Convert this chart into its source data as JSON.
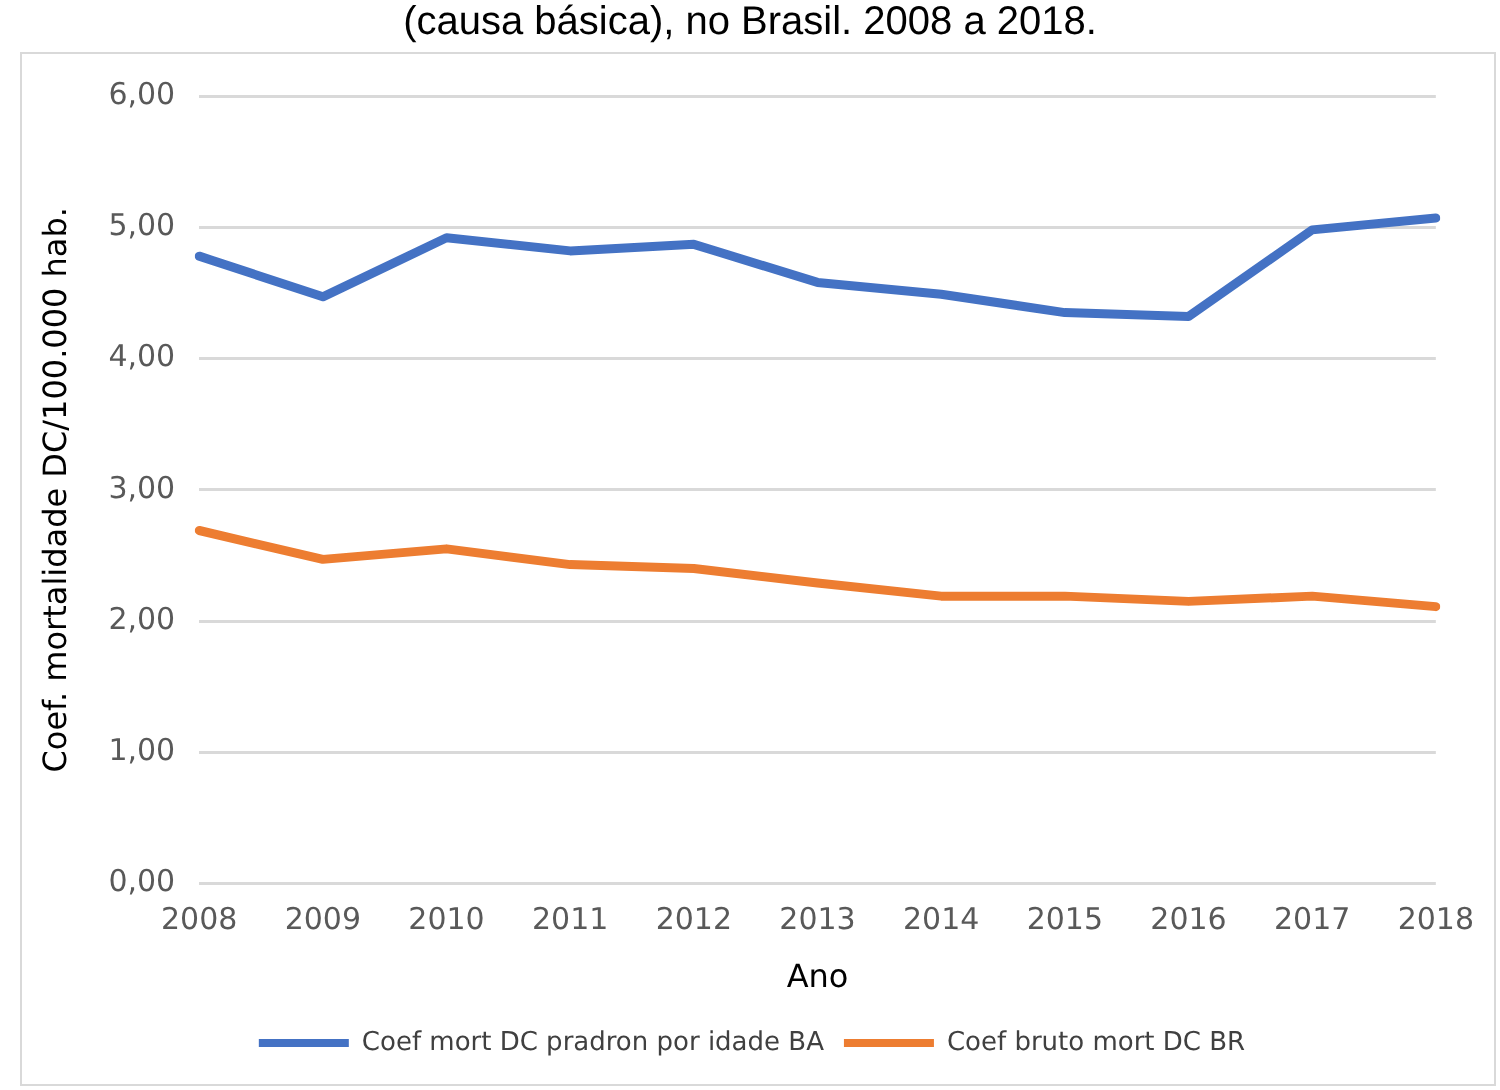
{
  "chart_data": {
    "type": "line",
    "title": "(causa básica), no Brasil. 2008 a 2018.",
    "xlabel": "Ano",
    "ylabel": "Coef. mortalidade DC/100.000 hab.",
    "categories": [
      "2008",
      "2009",
      "2010",
      "2011",
      "2012",
      "2013",
      "2014",
      "2015",
      "2016",
      "2017",
      "2018"
    ],
    "series": [
      {
        "name": "Coef mort DC pradron por idade BA",
        "color": "#4472c4",
        "values": [
          4.78,
          4.47,
          4.92,
          4.82,
          4.87,
          4.58,
          4.49,
          4.35,
          4.32,
          4.98,
          5.07
        ]
      },
      {
        "name": "Coef bruto mort DC BR",
        "color": "#ed7d31",
        "values": [
          2.69,
          2.47,
          2.55,
          2.43,
          2.4,
          2.29,
          2.19,
          2.19,
          2.15,
          2.19,
          2.11
        ]
      }
    ],
    "ylim": [
      0,
      6
    ],
    "yticks": [
      {
        "value": 0,
        "label": "0,00"
      },
      {
        "value": 1,
        "label": "1,00"
      },
      {
        "value": 2,
        "label": "2,00"
      },
      {
        "value": 3,
        "label": "3,00"
      },
      {
        "value": 4,
        "label": "4,00"
      },
      {
        "value": 5,
        "label": "5,00"
      },
      {
        "value": 6,
        "label": "6,00"
      }
    ],
    "grid": "y",
    "legend": "bottom",
    "marker": "none",
    "line_style": "solid"
  }
}
